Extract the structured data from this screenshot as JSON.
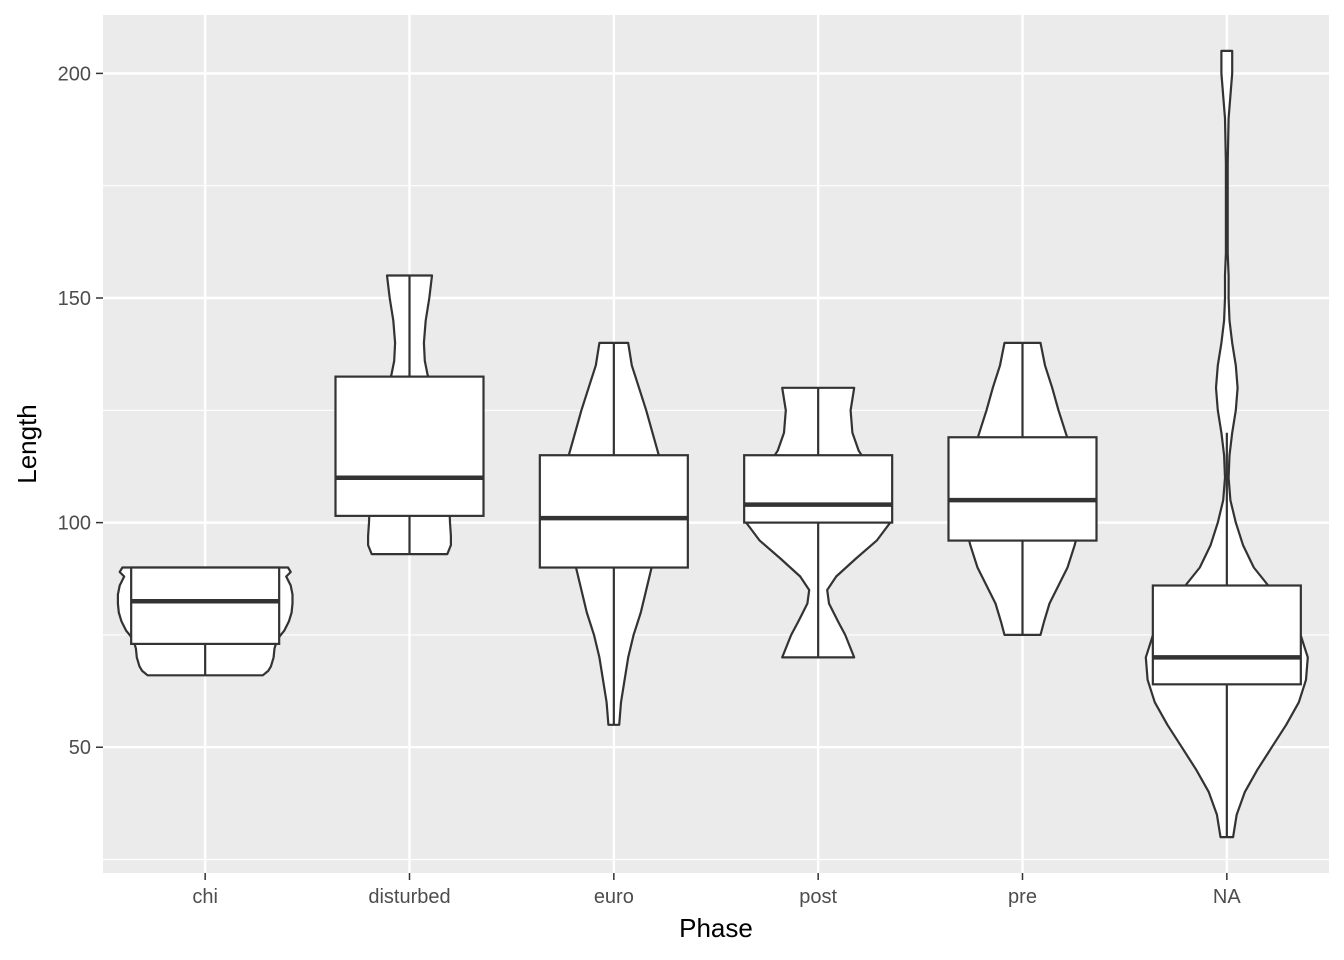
{
  "chart_data": {
    "type": "violin+boxplot",
    "title": "",
    "xlabel": "Phase",
    "ylabel": "Length",
    "ylim": [
      22,
      213
    ],
    "yticks": [
      50,
      100,
      150,
      200
    ],
    "grid": true,
    "legend": "none",
    "colors": {
      "panel": "#ebebeb",
      "grid": "#ffffff",
      "stroke": "#333333",
      "fill": "#ffffff"
    },
    "categories": [
      "chi",
      "disturbed",
      "euro",
      "post",
      "pre",
      "NA"
    ],
    "groups": [
      {
        "category": "chi",
        "box": {
          "lower_whisker": 66,
          "q1": 73,
          "median": 82.5,
          "q3": 90,
          "upper_whisker": 90
        },
        "violin": [
          [
            66,
            0.64
          ],
          [
            67,
            0.7
          ],
          [
            68,
            0.73
          ],
          [
            70,
            0.76
          ],
          [
            72,
            0.77
          ],
          [
            74,
            0.8
          ],
          [
            76,
            0.88
          ],
          [
            78,
            0.93
          ],
          [
            80,
            0.96
          ],
          [
            82,
            0.97
          ],
          [
            84,
            0.97
          ],
          [
            86,
            0.95
          ],
          [
            88,
            0.9
          ],
          [
            89,
            0.95
          ],
          [
            90,
            0.92
          ]
        ]
      },
      {
        "category": "disturbed",
        "box": {
          "lower_whisker": 93,
          "q1": 101.5,
          "median": 110,
          "q3": 132.5,
          "upper_whisker": 155
        },
        "violin": [
          [
            93,
            0.42
          ],
          [
            95,
            0.46
          ],
          [
            97,
            0.46
          ],
          [
            100,
            0.45
          ],
          [
            105,
            0.44
          ],
          [
            110,
            0.43
          ],
          [
            115,
            0.42
          ],
          [
            120,
            0.38
          ],
          [
            125,
            0.32
          ],
          [
            130,
            0.25
          ],
          [
            133,
            0.2
          ],
          [
            136,
            0.17
          ],
          [
            140,
            0.16
          ],
          [
            145,
            0.18
          ],
          [
            150,
            0.22
          ],
          [
            155,
            0.25
          ]
        ]
      },
      {
        "category": "euro",
        "box": {
          "lower_whisker": 55,
          "q1": 90,
          "median": 101,
          "q3": 115,
          "upper_whisker": 140
        },
        "violin": [
          [
            55,
            0.06
          ],
          [
            60,
            0.08
          ],
          [
            65,
            0.12
          ],
          [
            70,
            0.16
          ],
          [
            75,
            0.22
          ],
          [
            80,
            0.3
          ],
          [
            85,
            0.36
          ],
          [
            90,
            0.42
          ],
          [
            95,
            0.5
          ],
          [
            100,
            0.56
          ],
          [
            105,
            0.58
          ],
          [
            110,
            0.57
          ],
          [
            115,
            0.5
          ],
          [
            120,
            0.43
          ],
          [
            125,
            0.36
          ],
          [
            130,
            0.28
          ],
          [
            135,
            0.2
          ],
          [
            140,
            0.16
          ]
        ]
      },
      {
        "category": "post",
        "box": {
          "lower_whisker": 70,
          "q1": 100,
          "median": 104,
          "q3": 115,
          "upper_whisker": 130
        },
        "violin": [
          [
            70,
            0.4
          ],
          [
            72,
            0.36
          ],
          [
            75,
            0.3
          ],
          [
            78,
            0.22
          ],
          [
            82,
            0.12
          ],
          [
            85,
            0.1
          ],
          [
            88,
            0.2
          ],
          [
            92,
            0.42
          ],
          [
            96,
            0.65
          ],
          [
            100,
            0.8
          ],
          [
            103,
            0.82
          ],
          [
            105,
            0.8
          ],
          [
            108,
            0.75
          ],
          [
            112,
            0.58
          ],
          [
            116,
            0.45
          ],
          [
            120,
            0.38
          ],
          [
            125,
            0.36
          ],
          [
            130,
            0.4
          ]
        ]
      },
      {
        "category": "pre",
        "box": {
          "lower_whisker": 75,
          "q1": 96,
          "median": 105,
          "q3": 119,
          "upper_whisker": 140
        },
        "violin": [
          [
            75,
            0.2
          ],
          [
            78,
            0.24
          ],
          [
            82,
            0.3
          ],
          [
            86,
            0.4
          ],
          [
            90,
            0.5
          ],
          [
            95,
            0.58
          ],
          [
            100,
            0.64
          ],
          [
            105,
            0.66
          ],
          [
            110,
            0.62
          ],
          [
            115,
            0.56
          ],
          [
            120,
            0.48
          ],
          [
            125,
            0.4
          ],
          [
            130,
            0.33
          ],
          [
            135,
            0.25
          ],
          [
            140,
            0.2
          ]
        ]
      },
      {
        "category": "NA",
        "box": {
          "lower_whisker": 30,
          "q1": 64,
          "median": 70,
          "q3": 86,
          "upper_whisker": 120
        },
        "violin": [
          [
            30,
            0.07
          ],
          [
            35,
            0.11
          ],
          [
            40,
            0.2
          ],
          [
            45,
            0.34
          ],
          [
            50,
            0.5
          ],
          [
            55,
            0.66
          ],
          [
            60,
            0.8
          ],
          [
            65,
            0.88
          ],
          [
            70,
            0.9
          ],
          [
            75,
            0.82
          ],
          [
            80,
            0.68
          ],
          [
            85,
            0.5
          ],
          [
            90,
            0.3
          ],
          [
            95,
            0.18
          ],
          [
            100,
            0.1
          ],
          [
            105,
            0.04
          ],
          [
            110,
            0.02
          ],
          [
            115,
            0.03
          ],
          [
            120,
            0.06
          ],
          [
            125,
            0.1
          ],
          [
            130,
            0.12
          ],
          [
            135,
            0.1
          ],
          [
            140,
            0.06
          ],
          [
            145,
            0.03
          ],
          [
            150,
            0.02
          ],
          [
            155,
            0.02
          ],
          [
            160,
            0.01
          ],
          [
            170,
            0.01
          ],
          [
            180,
            0.01
          ],
          [
            190,
            0.02
          ],
          [
            195,
            0.04
          ],
          [
            200,
            0.06
          ],
          [
            205,
            0.06
          ]
        ]
      }
    ]
  }
}
